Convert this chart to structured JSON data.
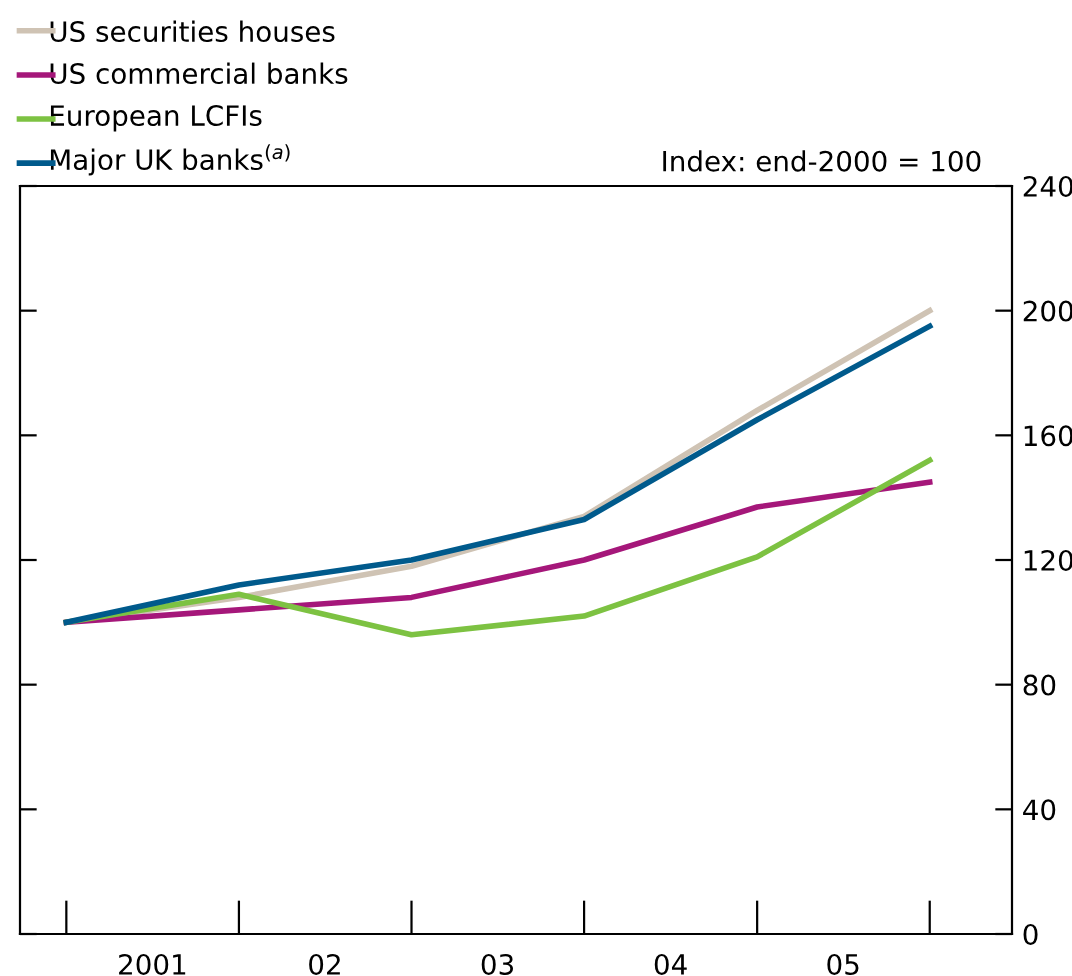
{
  "chart_data": {
    "type": "line",
    "x": [
      "2001-01-01",
      "2002-01-01",
      "2003-01-01",
      "2004-01-01",
      "2005-01-01",
      "2006-01-01"
    ],
    "xlim": [
      "2000-09-25",
      "2006-06-24"
    ],
    "xticks": [
      {
        "value": "2001-07-02",
        "label": "2001"
      },
      {
        "value": "2002-07-02",
        "label": "02"
      },
      {
        "value": "2003-07-02",
        "label": "03"
      },
      {
        "value": "2004-07-02",
        "label": "04"
      },
      {
        "value": "2005-07-02",
        "label": "05"
      }
    ],
    "ylim": [
      0,
      240
    ],
    "yticks": [
      0,
      40,
      80,
      120,
      160,
      200,
      240
    ],
    "grid": false,
    "legend": "top left",
    "marker": "none",
    "line_style": "solid",
    "annotations": [
      "Index: end-2000 = 100"
    ],
    "series": [
      {
        "name": "US securities houses",
        "color": "#cfc3b4",
        "values": [
          100,
          108,
          118,
          134,
          168,
          200
        ]
      },
      {
        "name": "US commercial banks",
        "color": "#a5177a",
        "values": [
          100,
          104,
          108,
          120,
          137,
          145
        ]
      },
      {
        "name": "European LCFIs",
        "color": "#7dc242",
        "values": [
          100,
          109,
          96,
          102,
          121,
          152
        ]
      },
      {
        "name": "Major UK banks$^{(a)}$",
        "color": "#005a8c",
        "values": [
          100,
          112,
          120,
          133,
          165,
          195
        ]
      }
    ]
  }
}
